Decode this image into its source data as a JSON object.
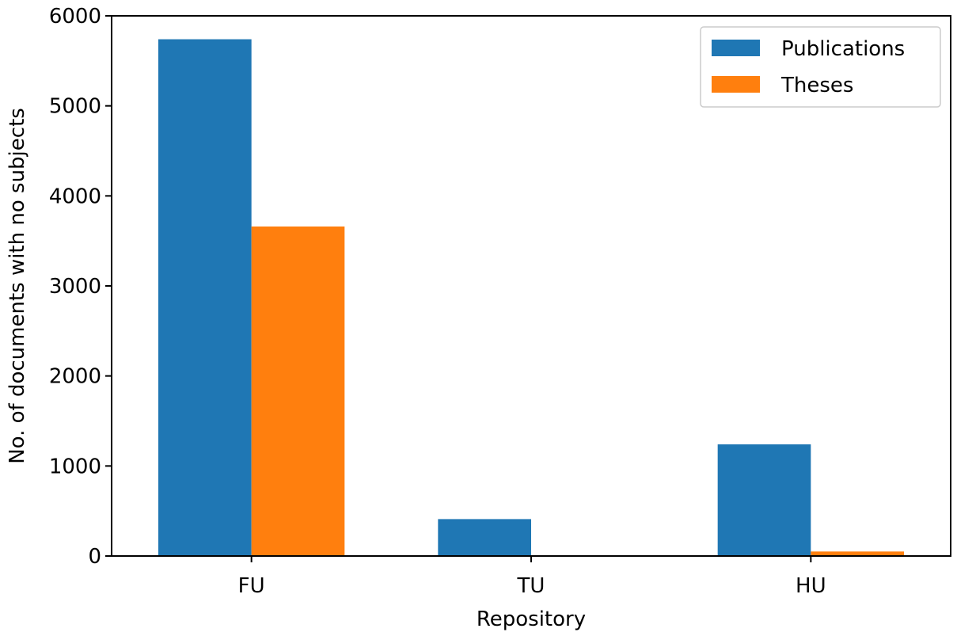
{
  "chart_data": {
    "type": "bar",
    "title": "",
    "xlabel": "Repository",
    "ylabel": "No. of documents with no subjects",
    "categories": [
      "FU",
      "TU",
      "HU"
    ],
    "series": [
      {
        "name": "Publications",
        "values": [
          5740,
          410,
          1240
        ],
        "color": "#1f77b4"
      },
      {
        "name": "Theses",
        "values": [
          3660,
          0,
          50
        ],
        "color": "#ff7f0e"
      }
    ],
    "ylim": [
      0,
      6000
    ],
    "yticks": [
      0,
      1000,
      2000,
      3000,
      4000,
      5000,
      6000
    ],
    "grid": false,
    "legend_position": "top-right"
  }
}
